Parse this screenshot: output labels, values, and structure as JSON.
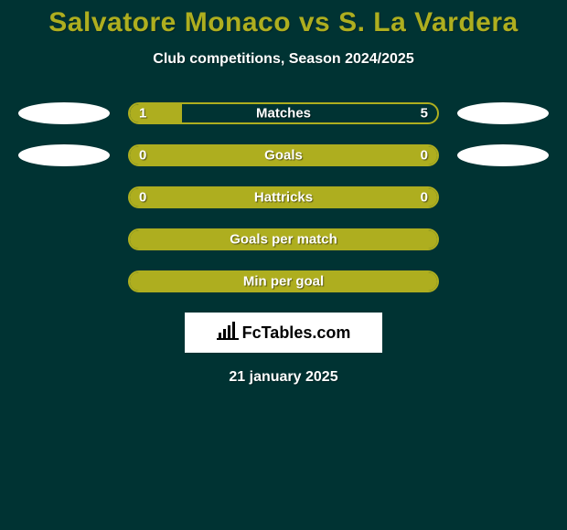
{
  "title": "Salvatore Monaco vs S. La Vardera",
  "subtitle": "Club competitions, Season 2024/2025",
  "date": "21 january 2025",
  "colors": {
    "background": "#003333",
    "accent": "#aeae1f",
    "text": "#ffffff",
    "ellipse": "#ffffff"
  },
  "logo": {
    "text": "FcTables.com"
  },
  "stats": [
    {
      "label": "Matches",
      "left_value": "1",
      "right_value": "5",
      "left_fill_pct": 17,
      "right_fill_pct": 0,
      "show_left_ellipse": true,
      "show_right_ellipse": true,
      "show_values": true
    },
    {
      "label": "Goals",
      "left_value": "0",
      "right_value": "0",
      "left_fill_pct": 0,
      "right_fill_pct": 0,
      "show_left_ellipse": true,
      "show_right_ellipse": true,
      "show_values": true,
      "full_fill": true
    },
    {
      "label": "Hattricks",
      "left_value": "0",
      "right_value": "0",
      "left_fill_pct": 0,
      "right_fill_pct": 0,
      "show_left_ellipse": false,
      "show_right_ellipse": false,
      "show_values": true,
      "full_fill": true
    },
    {
      "label": "Goals per match",
      "left_value": "",
      "right_value": "",
      "left_fill_pct": 0,
      "right_fill_pct": 0,
      "show_left_ellipse": false,
      "show_right_ellipse": false,
      "show_values": false,
      "full_fill": true
    },
    {
      "label": "Min per goal",
      "left_value": "",
      "right_value": "",
      "left_fill_pct": 0,
      "right_fill_pct": 0,
      "show_left_ellipse": false,
      "show_right_ellipse": false,
      "show_values": false,
      "full_fill": true
    }
  ]
}
